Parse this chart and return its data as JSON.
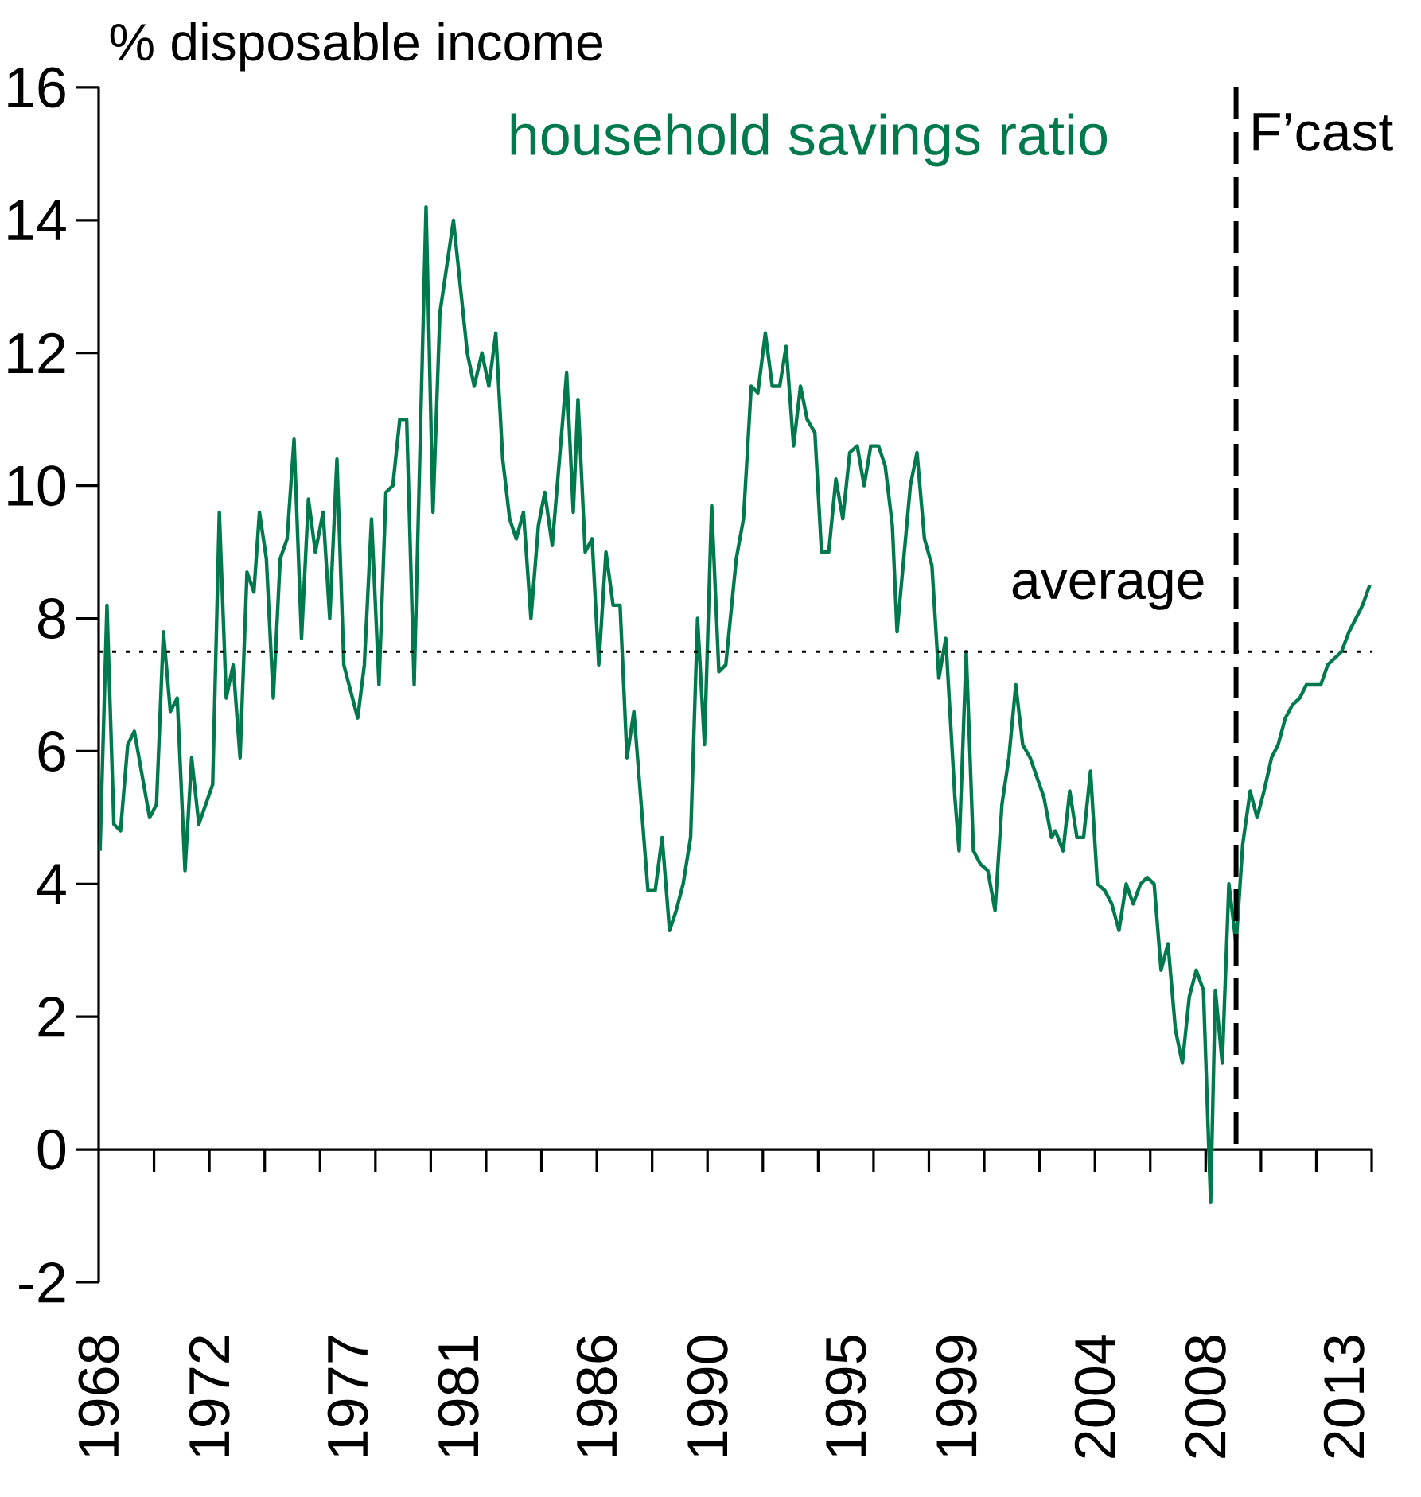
{
  "chart_data": {
    "type": "line",
    "title": "household savings ratio",
    "ylabel": "% disposable income",
    "xlim": [
      1968,
      2014
    ],
    "ylim": [
      -2,
      16
    ],
    "yticks": [
      -2,
      0,
      2,
      4,
      6,
      8,
      10,
      12,
      14,
      16
    ],
    "xticks": [
      {
        "value": 1968,
        "label": null
      },
      {
        "value": 1970,
        "label": null
      },
      {
        "value": 1972,
        "label": null
      },
      {
        "value": 1974,
        "label": null
      },
      {
        "value": 1976,
        "label": null
      },
      {
        "value": 1978,
        "label": null
      },
      {
        "value": 1980,
        "label": null
      },
      {
        "value": 1982,
        "label": null
      },
      {
        "value": 1984,
        "label": null
      },
      {
        "value": 1986,
        "label": null
      },
      {
        "value": 1988,
        "label": null
      },
      {
        "value": 1990,
        "label": null
      },
      {
        "value": 1992,
        "label": null
      },
      {
        "value": 1994,
        "label": null
      },
      {
        "value": 1996,
        "label": null
      },
      {
        "value": 1998,
        "label": null
      },
      {
        "value": 2000,
        "label": null
      },
      {
        "value": 2002,
        "label": null
      },
      {
        "value": 2004,
        "label": null
      },
      {
        "value": 2006,
        "label": null
      },
      {
        "value": 2008,
        "label": null
      },
      {
        "value": 2010,
        "label": null
      },
      {
        "value": 2012,
        "label": null
      },
      {
        "value": 2014,
        "label": null
      },
      1968,
      1972,
      1977,
      1981,
      1986,
      1990,
      1995,
      1999,
      2004,
      2008,
      2013
    ],
    "marker": "none",
    "line_style": "solid",
    "ref_lines": [
      {
        "axis": "y",
        "value": 7.5,
        "label": "average",
        "line_style": "dotted",
        "color": "#000000"
      },
      {
        "axis": "x",
        "value": 2009.1,
        "label": "F’cast",
        "line_style": "dashed",
        "color": "#000000"
      }
    ],
    "series": [
      {
        "color": "#007a4d",
        "x": [
          1968.05,
          1968.3,
          1968.55,
          1968.79,
          1969.05,
          1969.29,
          1969.84,
          1970.09,
          1970.34,
          1970.59,
          1970.84,
          1971.12,
          1971.36,
          1971.62,
          1972.12,
          1972.36,
          1972.61,
          1972.86,
          1973.11,
          1973.36,
          1973.61,
          1973.81,
          1974.06,
          1974.31,
          1974.56,
          1974.81,
          1975.06,
          1975.33,
          1975.58,
          1975.83,
          1976.11,
          1976.35,
          1976.61,
          1976.86,
          1977.11,
          1977.36,
          1977.6,
          1977.86,
          1978.13,
          1978.38,
          1978.63,
          1978.88,
          1979.13,
          1979.4,
          1979.83,
          1980.08,
          1980.33,
          1980.82,
          1981.32,
          1981.57,
          1981.85,
          1982.1,
          1982.35,
          1982.6,
          1982.85,
          1983.09,
          1983.35,
          1983.62,
          1983.89,
          1984.12,
          1984.39,
          1984.91,
          1985.15,
          1985.32,
          1985.58,
          1985.83,
          1986.07,
          1986.33,
          1986.59,
          1986.84,
          1987.09,
          1987.34,
          1987.85,
          1988.11,
          1988.36,
          1988.63,
          1988.87,
          1989.12,
          1989.39,
          1989.64,
          1989.89,
          1990.15,
          1990.41,
          1990.66,
          1991.04,
          1991.3,
          1991.58,
          1991.82,
          1992.09,
          1992.34,
          1992.61,
          1992.84,
          1993.11,
          1993.36,
          1993.6,
          1993.88,
          1994.12,
          1994.38,
          1994.64,
          1994.89,
          1995.14,
          1995.41,
          1995.66,
          1995.9,
          1996.18,
          1996.42,
          1996.68,
          1996.85,
          1997.33,
          1997.57,
          1997.84,
          1998.11,
          1998.36,
          1998.61,
          1998.94,
          1999.09,
          1999.35,
          1999.61,
          1999.86,
          2000.13,
          2000.39,
          2000.64,
          2000.89,
          2001.14,
          2001.39,
          2001.66,
          2002.16,
          2002.43,
          2002.57,
          2002.85,
          2003.09,
          2003.35,
          2003.59,
          2003.84,
          2004.09,
          2004.36,
          2004.61,
          2004.87,
          2005.13,
          2005.38,
          2005.65,
          2005.89,
          2006.14,
          2006.39,
          2006.64,
          2006.91,
          2007.16,
          2007.41,
          2007.66,
          2007.92,
          2008.18,
          2008.35,
          2008.6,
          2008.84,
          2009.1,
          2009.34,
          2009.61,
          2009.86,
          2010.11,
          2010.38,
          2010.62,
          2010.88,
          2011.14,
          2011.4,
          2011.64,
          2011.89,
          2012.16,
          2012.41,
          2012.66,
          2012.91,
          2013.18,
          2013.43,
          2013.67,
          2013.93
        ],
        "values": [
          4.5,
          8.2,
          4.9,
          4.8,
          6.1,
          6.3,
          5.0,
          5.2,
          7.8,
          6.6,
          6.8,
          4.2,
          5.9,
          4.9,
          5.5,
          9.6,
          6.8,
          7.3,
          5.9,
          8.7,
          8.4,
          9.6,
          8.9,
          6.8,
          8.9,
          9.2,
          10.7,
          7.7,
          9.8,
          9.0,
          9.6,
          8.0,
          10.4,
          7.3,
          6.9,
          6.5,
          7.3,
          9.5,
          7.0,
          9.9,
          10.0,
          11.0,
          11.0,
          7.0,
          14.2,
          9.6,
          12.6,
          14.0,
          12.0,
          11.5,
          12.0,
          11.5,
          12.3,
          10.4,
          9.5,
          9.2,
          9.6,
          8.0,
          9.4,
          9.9,
          9.1,
          11.7,
          9.6,
          11.3,
          9.0,
          9.2,
          7.3,
          9.0,
          8.2,
          8.2,
          5.9,
          6.6,
          3.9,
          3.9,
          4.7,
          3.3,
          3.6,
          4.0,
          4.7,
          8.0,
          6.1,
          9.7,
          7.2,
          7.3,
          8.9,
          9.5,
          11.5,
          11.4,
          12.3,
          11.5,
          11.5,
          12.1,
          10.6,
          11.5,
          11.0,
          10.8,
          9.0,
          9.0,
          10.1,
          9.5,
          10.5,
          10.6,
          10.0,
          10.6,
          10.6,
          10.3,
          9.4,
          7.8,
          10.0,
          10.5,
          9.2,
          8.8,
          7.1,
          7.7,
          5.3,
          4.5,
          7.5,
          4.5,
          4.3,
          4.2,
          3.6,
          5.2,
          5.9,
          7.0,
          6.1,
          5.9,
          5.3,
          4.7,
          4.8,
          4.5,
          5.4,
          4.7,
          4.7,
          5.7,
          4.0,
          3.9,
          3.7,
          3.3,
          4.0,
          3.7,
          4.0,
          4.1,
          4.0,
          2.7,
          3.1,
          1.8,
          1.3,
          2.3,
          2.7,
          2.4,
          -0.8,
          2.4,
          1.3,
          4.0,
          3.1,
          4.6,
          5.4,
          5.0,
          5.4,
          5.9,
          6.1,
          6.5,
          6.7,
          6.8,
          7.0,
          7.0,
          7.0,
          7.3,
          7.4,
          7.5,
          7.8,
          8.0,
          8.2,
          8.5
        ]
      }
    ]
  }
}
